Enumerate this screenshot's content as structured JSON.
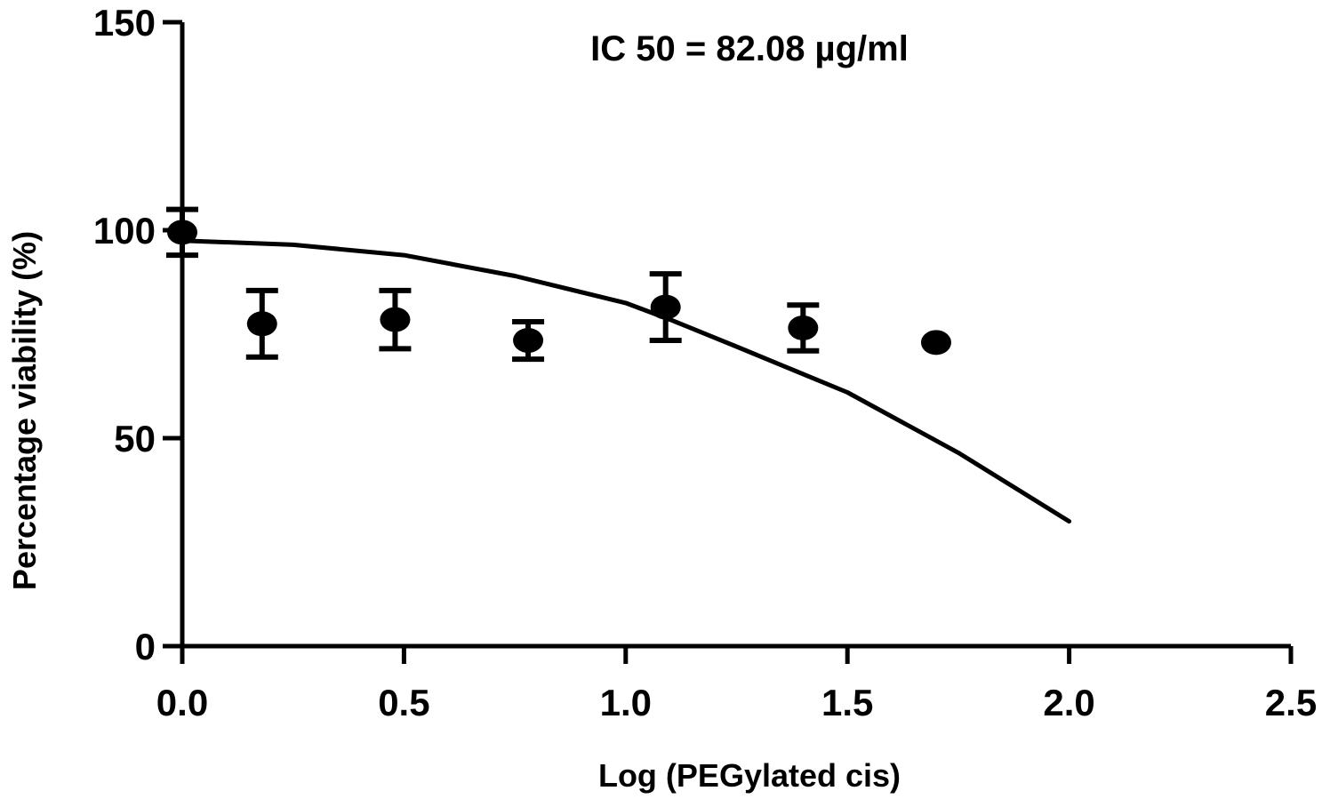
{
  "chart_data": {
    "type": "scatter",
    "title": "",
    "annotation": "IC 50 = 82.08 µg/ml",
    "xlabel": "Log (PEGylated cis)",
    "ylabel": "Percentage viability (%)",
    "xlim": [
      0,
      2.5
    ],
    "ylim": [
      0,
      150
    ],
    "xticks": [
      0.0,
      0.5,
      1.0,
      1.5,
      2.0,
      2.5
    ],
    "xtick_labels": [
      "0.0",
      "0.5",
      "1.0",
      "1.5",
      "2.0",
      "2.5"
    ],
    "yticks": [
      0,
      50,
      100,
      150
    ],
    "ytick_labels": [
      "0",
      "50",
      "100",
      "150"
    ],
    "grid": false,
    "series": [
      {
        "type": "scatter",
        "x": [
          0.0,
          0.18,
          0.48,
          0.78,
          1.09,
          1.4,
          1.7
        ],
        "y": [
          99.5,
          77.5,
          78.5,
          73.5,
          81.5,
          76.5,
          73.0
        ],
        "error": [
          5.5,
          8.0,
          7.0,
          4.5,
          8.0,
          5.5,
          0.5
        ]
      },
      {
        "type": "line",
        "x": [
          0.0,
          0.25,
          0.5,
          0.75,
          1.0,
          1.1,
          1.25,
          1.5,
          1.75,
          2.0
        ],
        "y": [
          97.5,
          96.5,
          94.0,
          89.0,
          82.5,
          78.5,
          72.0,
          61.0,
          46.5,
          30.0
        ]
      }
    ]
  }
}
